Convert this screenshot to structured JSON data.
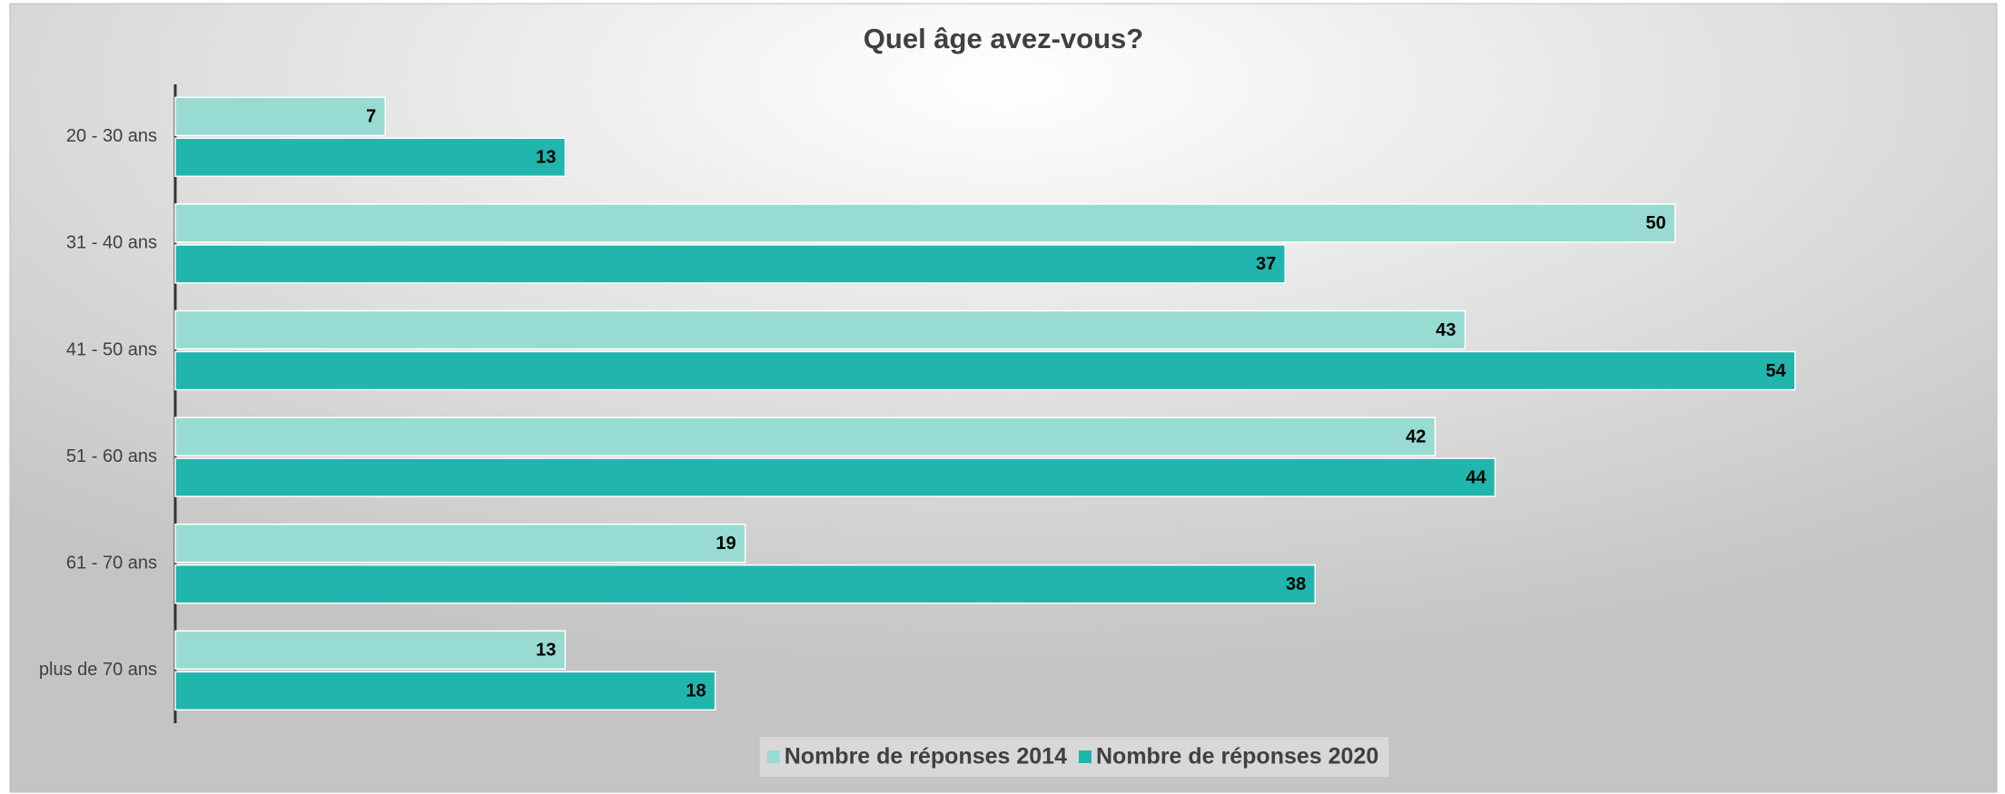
{
  "chart_data": {
    "type": "hbar",
    "title": "Quel âge avez-vous?",
    "categories": [
      "20 - 30 ans",
      "31 - 40 ans",
      "41 - 50 ans",
      "51 - 60 ans",
      "61 - 70 ans",
      "plus de 70 ans"
    ],
    "series": [
      {
        "name": "Nombre de réponses 2014",
        "color": "#97dbd2",
        "values": [
          7,
          50,
          43,
          42,
          19,
          13
        ]
      },
      {
        "name": "Nombre de réponses 2020",
        "color": "#20b6ad",
        "values": [
          13,
          37,
          54,
          44,
          38,
          18
        ]
      }
    ],
    "xlim": [
      0,
      60
    ],
    "legend": "bottom"
  }
}
